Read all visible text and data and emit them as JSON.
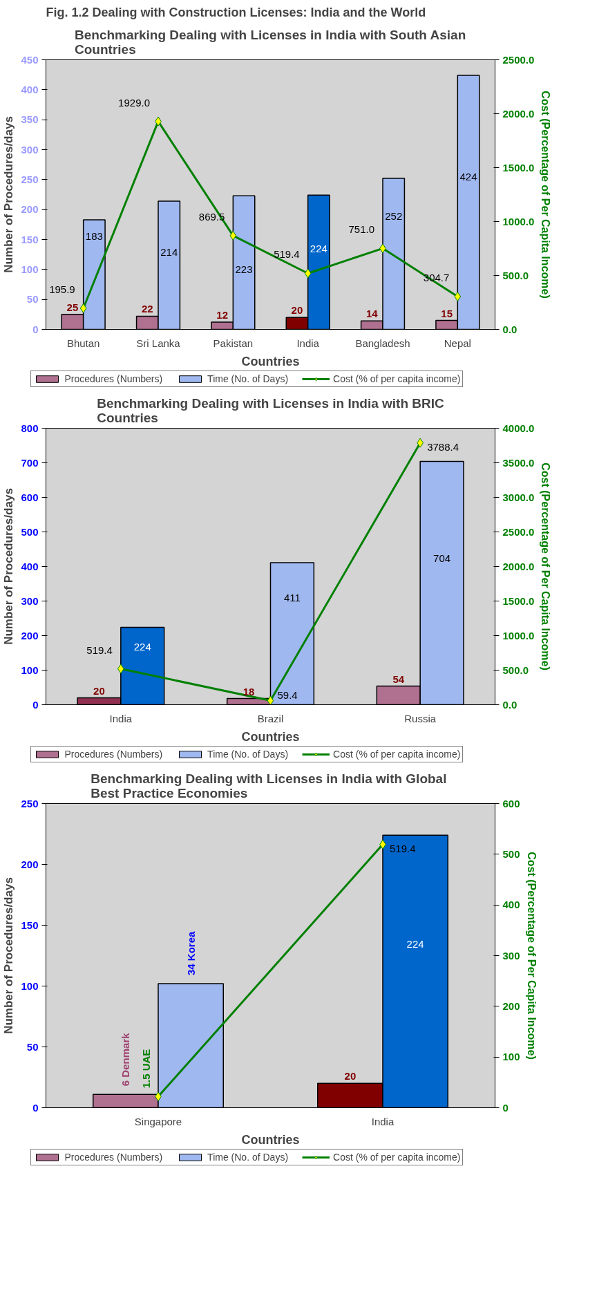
{
  "chart_data": [
    {
      "type": "bar",
      "annotations": [
        "Fig. 1.2 Dealing with Construction Licenses: India and the World"
      ],
      "title": "Benchmarking Dealing with Licenses in India with South Asian Countries",
      "xlabel": "Countries",
      "ylabel": "Number of Procedures/days",
      "y2label": "Cost (Percentage of Per Capita Income)",
      "categories": [
        "Bhutan",
        "Sri Lanka",
        "Pakistan",
        "India",
        "Bangladesh",
        "Nepal"
      ],
      "ylim": [
        0,
        450
      ],
      "yticks": [
        0,
        50,
        100,
        150,
        200,
        250,
        300,
        350,
        400,
        450
      ],
      "y2lim": [
        0,
        2500
      ],
      "y2ticks": [
        {
          "value": 0,
          "label": "0.0"
        },
        {
          "value": 500,
          "label": "500.0"
        },
        {
          "value": 1000,
          "label": "1000.0"
        },
        {
          "value": 1500,
          "label": "1500.0"
        },
        {
          "value": 2000,
          "label": "2000.0"
        },
        {
          "value": 2500,
          "label": "2500.0"
        }
      ],
      "legend": "bottom",
      "series": [
        {
          "name": "Procedures (Numbers)",
          "color": "#b07090",
          "colors": [
            "#b07090",
            "#b07090",
            "#b07090",
            "#800000",
            "#b07090",
            "#b07090"
          ],
          "values": [
            25,
            22,
            12,
            20,
            14,
            15
          ],
          "value_labels": [
            "25",
            "22",
            "12",
            "20",
            "14",
            "15"
          ]
        },
        {
          "name": "Time (No. of Days)",
          "color": "#a0b8f0",
          "colors": [
            "#a0b8f0",
            "#a0b8f0",
            "#a0b8f0",
            "#0066cc",
            "#a0b8f0",
            "#a0b8f0"
          ],
          "values": [
            183,
            214,
            223,
            224,
            252,
            424
          ],
          "value_labels": [
            "183",
            "214",
            "223",
            "224",
            "252",
            "424"
          ]
        },
        {
          "name": "Cost (% of per capita income)",
          "type": "line",
          "axis": "y2",
          "color": "#008000",
          "marker": "diamond",
          "values": [
            195.9,
            1929.0,
            869.5,
            519.4,
            751.0,
            304.7
          ],
          "value_labels": [
            "195.9",
            "1929.0",
            "869.5",
            "519.4",
            "751.0",
            "304.7"
          ]
        }
      ]
    },
    {
      "type": "bar",
      "title": "Benchmarking Dealing with Licenses in India with BRIC Countries",
      "xlabel": "Countries",
      "ylabel": "Number of Procedures/days",
      "y2label": "Cost (Percentage of Per Capita Income)",
      "categories": [
        "India",
        "Brazil",
        "Russia"
      ],
      "ylim": [
        0,
        800
      ],
      "yticks": [
        0,
        100,
        200,
        300,
        400,
        500,
        600,
        700,
        800
      ],
      "y2lim": [
        0,
        4000
      ],
      "y2ticks": [
        {
          "value": 0,
          "label": "0.0"
        },
        {
          "value": 500,
          "label": "500.0"
        },
        {
          "value": 1000,
          "label": "1000.0"
        },
        {
          "value": 1500,
          "label": "1500.0"
        },
        {
          "value": 2000,
          "label": "2000.0"
        },
        {
          "value": 2500,
          "label": "2500.0"
        },
        {
          "value": 3000,
          "label": "3000.0"
        },
        {
          "value": 3500,
          "label": "3500.0"
        },
        {
          "value": 4000,
          "label": "4000.0"
        }
      ],
      "legend": "bottom",
      "series": [
        {
          "name": "Procedures (Numbers)",
          "color": "#b07090",
          "colors": [
            "#903050",
            "#b07090",
            "#b07090"
          ],
          "values": [
            20,
            18,
            54
          ],
          "value_labels": [
            "20",
            "18",
            "54"
          ]
        },
        {
          "name": "Time (No. of Days)",
          "color": "#a0b8f0",
          "colors": [
            "#0066cc",
            "#a0b8f0",
            "#a0b8f0"
          ],
          "values": [
            224,
            411,
            704
          ],
          "value_labels": [
            "224",
            "411",
            "704"
          ]
        },
        {
          "name": "Cost (% of per capita income)",
          "type": "line",
          "axis": "y2",
          "color": "#008000",
          "marker": "diamond",
          "values": [
            519.4,
            59.4,
            3788.4
          ],
          "value_labels": [
            "519.4",
            "59.4",
            "3788.4"
          ]
        }
      ]
    },
    {
      "type": "bar",
      "title": "Benchmarking Dealing with Licenses in  India with Global Best Practice Economies",
      "xlabel": "Countries",
      "ylabel": "Number of Procedures/days",
      "y2label": "Cost (Percentage of Per Capita Income)",
      "categories": [
        "Singapore",
        "India"
      ],
      "ylim": [
        0,
        250
      ],
      "yticks": [
        0,
        50,
        100,
        150,
        200,
        250
      ],
      "y2lim": [
        0,
        600
      ],
      "y2ticks": [
        0,
        100,
        200,
        300,
        400,
        500,
        600
      ],
      "legend": "bottom",
      "annotations": [
        {
          "text": "6 Denmark",
          "x": "Singapore",
          "y": 11
        },
        {
          "text": "34 Korea",
          "x": "Singapore",
          "y": 102
        },
        {
          "text": "1.5 UAE",
          "x": "Singapore",
          "y": 22
        }
      ],
      "series": [
        {
          "name": "Procedures (Numbers)",
          "color": "#b07090",
          "colors": [
            "#b07090",
            "#800000"
          ],
          "values": [
            11,
            20
          ],
          "value_labels": [
            null,
            "20"
          ]
        },
        {
          "name": "Time (No. of Days)",
          "color": "#a0b8f0",
          "colors": [
            "#a0b8f0",
            "#0066cc"
          ],
          "values": [
            102,
            224
          ],
          "value_labels": [
            null,
            "224"
          ]
        },
        {
          "name": "Cost (% of per capita income)",
          "type": "line",
          "axis": "y2",
          "color": "#008000",
          "marker": "diamond",
          "values": [
            22,
            519.4
          ],
          "value_labels": [
            null,
            "519.4"
          ]
        }
      ]
    }
  ]
}
